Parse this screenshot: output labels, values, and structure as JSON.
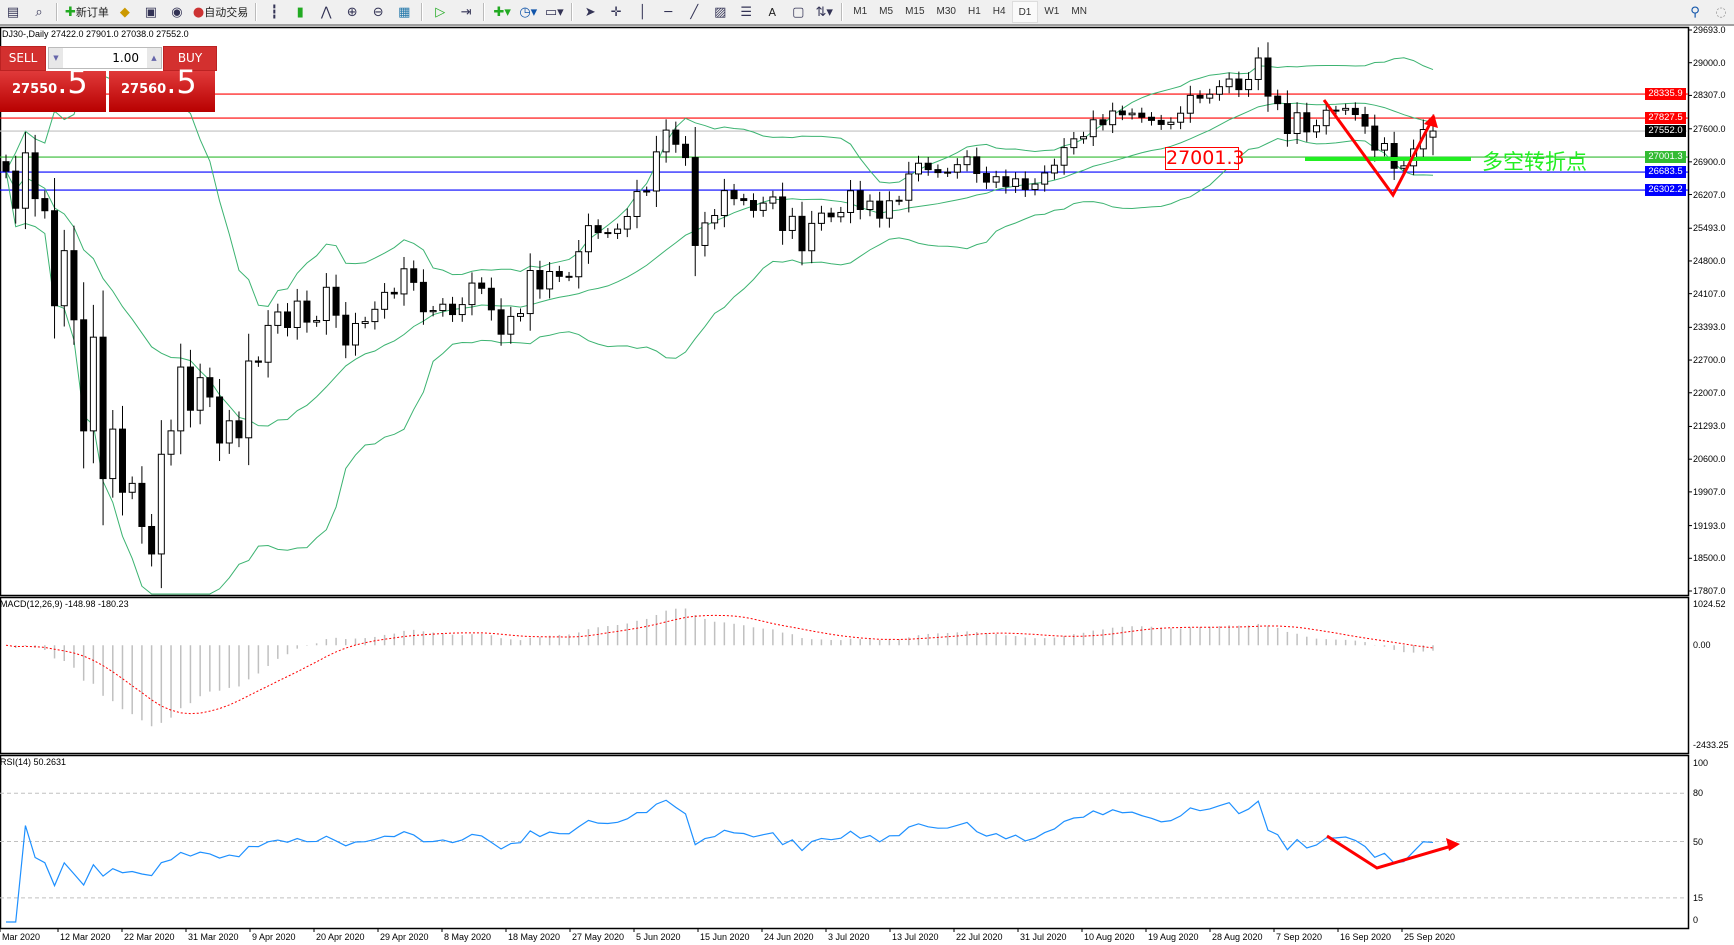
{
  "toolbar": {
    "new_order": "新订单",
    "auto_trading": "自动交易",
    "periods": [
      "M1",
      "M5",
      "M15",
      "M30",
      "H1",
      "H4",
      "D1",
      "W1",
      "MN"
    ],
    "active_period": "D1",
    "text_tool": "A"
  },
  "chart_header": "DJ30-,Daily  27422.0 27901.0 27038.0 27552.0",
  "trade_panel": {
    "sell_label": "SELL",
    "buy_label": "BUY",
    "lot": "1.00",
    "sell_price_main": "27550",
    "sell_price_pip": ".5",
    "buy_price_main": "27560",
    "buy_price_pip": ".5"
  },
  "macd_title": "MACD(12,26,9) -148.98 -180.23",
  "rsi_title": "RSI(14) 50.2631",
  "annotation": {
    "level_label": "27001.3",
    "text": "多空转折点"
  },
  "colors": {
    "bands": "#3cb371",
    "rsi": "#1e90ff",
    "macd_signal": "#ff0000",
    "annotation": "#22ee22",
    "drawn_arrows": "#ff0000"
  },
  "chart_data": {
    "type": "candlestick",
    "symbol": "DJ30-",
    "timeframe": "Daily",
    "last_bar": {
      "open": 27422.0,
      "high": 27901.0,
      "low": 27038.0,
      "close": 27552.0
    },
    "closes": [
      26703,
      25917,
      27090,
      26121,
      25864,
      23851,
      25018,
      23553,
      21200,
      23185,
      20189,
      21237,
      19899,
      20087,
      19174,
      18592,
      20704,
      21200,
      22552,
      21637,
      22327,
      21917,
      20943,
      21413,
      21053,
      22680,
      22654,
      23434,
      23719,
      23390,
      23949,
      23504,
      23538,
      24242,
      23650,
      23019,
      23475,
      23515,
      23775,
      24134,
      24101,
      24634,
      24346,
      23724,
      23749,
      23883,
      23664,
      23875,
      24331,
      24221,
      23764,
      23248,
      23625,
      23685,
      24597,
      24207,
      24576,
      24474,
      24465,
      24995,
      25548,
      25401,
      25383,
      25475,
      25742,
      26270,
      26282,
      27111,
      27572,
      27272,
      26990,
      25128,
      25606,
      25763,
      26290,
      26120,
      26080,
      25871,
      26025,
      26156,
      25446,
      25745,
      25016,
      25596,
      25813,
      25735,
      25827,
      26287,
      25890,
      26067,
      25706,
      26075,
      26086,
      26643,
      26870,
      26735,
      26672,
      26681,
      26840,
      27006,
      26653,
      26470,
      26585,
      26379,
      26540,
      26314,
      26428,
      26664,
      26828,
      27201,
      27387,
      27433,
      27791,
      27687,
      27977,
      27897,
      27931,
      27844,
      27778,
      27692,
      27739,
      27930,
      28308,
      28249,
      28332,
      28492,
      28654,
      28430,
      28645,
      29100,
      28292,
      28133,
      27500,
      27940,
      27535,
      27666,
      27993,
      27995,
      28032,
      27902,
      27657,
      27148,
      27288,
      26763,
      26815,
      27174,
      27584,
      27552
    ],
    "indicators": [
      "Bollinger Bands",
      "MACD(12,26,9)",
      "RSI(14)"
    ],
    "price_axis": [
      "29693.0",
      "29000.0",
      "28307.0",
      "27600.0",
      "26900.0",
      "26207.0",
      "25493.0",
      "24800.0",
      "24107.0",
      "23393.0",
      "22700.0",
      "22007.0",
      "21293.0",
      "20600.0",
      "19907.0",
      "19193.0",
      "18500.0",
      "17807.0"
    ],
    "price_range": [
      17807.0,
      29693.0
    ],
    "levels": [
      {
        "price": "28335.9",
        "color": "#ff0000"
      },
      {
        "price": "27827.5",
        "color": "#ff0000"
      },
      {
        "price": "27552.0",
        "color": "#000000",
        "line": "#c0c0c0"
      },
      {
        "price": "27001.3",
        "color": "#33bb33"
      },
      {
        "price": "26683.5",
        "color": "#0000ff"
      },
      {
        "price": "26302.2",
        "color": "#0000ff"
      }
    ],
    "macd_axis": [
      "1024.52",
      "0.00",
      "-2433.25"
    ],
    "macd_range": [
      -2433.25,
      1024.52
    ],
    "rsi_axis": [
      "100",
      "80",
      "50",
      "15",
      "0"
    ],
    "rsi_levels": [
      80,
      50,
      15
    ],
    "date_labels": [
      "Mar 2020",
      "12 Mar 2020",
      "22 Mar 2020",
      "31 Mar 2020",
      "9 Apr 2020",
      "20 Apr 2020",
      "29 Apr 2020",
      "8 May 2020",
      "18 May 2020",
      "27 May 2020",
      "5 Jun 2020",
      "15 Jun 2020",
      "24 Jun 2020",
      "3 Jul 2020",
      "13 Jul 2020",
      "22 Jul 2020",
      "31 Jul 2020",
      "10 Aug 2020",
      "19 Aug 2020",
      "28 Aug 2020",
      "7 Sep 2020",
      "16 Sep 2020",
      "25 Sep 2020"
    ]
  }
}
